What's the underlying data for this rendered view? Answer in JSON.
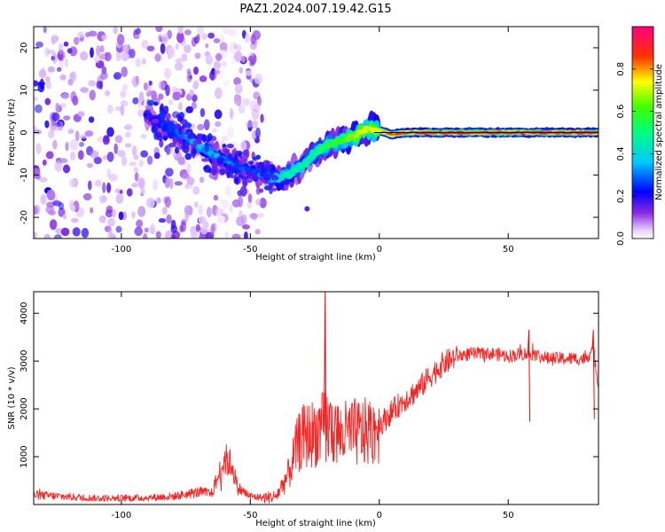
{
  "chart_data": [
    {
      "type": "heatmap",
      "title": "PAZ1.2024.007.19.42.G15",
      "xlabel": "Height of straight line (km)",
      "ylabel": "Frequency (Hz)",
      "xlim": [
        -134,
        85
      ],
      "ylim": [
        -25,
        25
      ],
      "x_ticks": [
        -100,
        -50,
        0,
        50
      ],
      "y_ticks": [
        -20,
        -10,
        0,
        10,
        20
      ],
      "colorbar": {
        "label": "Normalized spectral amplitude",
        "range": [
          0,
          1
        ],
        "ticks": [
          "0.0",
          "0.2",
          "0.4",
          "0.6",
          "0.8"
        ],
        "colormap": "hsv-like (white/violet to red/magenta)",
        "colors": [
          "#ffffff",
          "#8a2be2",
          "#0000ff",
          "#00ffff",
          "#00ff00",
          "#ffff00",
          "#ff0000",
          "#ff0080"
        ]
      },
      "ridge": {
        "x": [
          -90,
          -85,
          -80,
          -75,
          -70,
          -65,
          -60,
          -55,
          -50,
          -45,
          -40,
          -35,
          -30,
          -25,
          -20,
          -15,
          -10,
          -5,
          0,
          5,
          10,
          20,
          30,
          40,
          50,
          60,
          70,
          80,
          85
        ],
        "frequency": [
          4,
          2,
          0.5,
          -1,
          -3,
          -5,
          -6.5,
          -8,
          -9,
          -10,
          -11,
          -10,
          -8,
          -5,
          -3,
          -2,
          -1,
          1,
          0.5,
          -0.5,
          0,
          0,
          0,
          0,
          0,
          0,
          0,
          0,
          0
        ],
        "amplitude": [
          0.2,
          0.25,
          0.3,
          0.3,
          0.35,
          0.35,
          0.3,
          0.3,
          0.25,
          0.3,
          0.4,
          0.45,
          0.45,
          0.5,
          0.55,
          0.6,
          0.65,
          0.7,
          0.75,
          0.85,
          0.9,
          0.9,
          0.92,
          0.92,
          0.92,
          0.92,
          0.92,
          0.92,
          0.9
        ]
      },
      "noise_region_x": [
        -134,
        -45
      ],
      "isolated_blob": {
        "x": -28,
        "frequency": -18
      }
    },
    {
      "type": "line",
      "xlabel": "Height of straight line (km)",
      "ylabel": "SNR (10 * v/v)",
      "xlim": [
        -134,
        85
      ],
      "ylim": [
        0,
        4450
      ],
      "x_ticks": [
        -100,
        -50,
        0,
        50
      ],
      "y_ticks": [
        1000,
        2000,
        3000,
        4000
      ],
      "color": "#ff0000",
      "envelope": {
        "x": [
          -134,
          -110,
          -90,
          -80,
          -75,
          -70,
          -65,
          -62,
          -60,
          -57,
          -55,
          -50,
          -45,
          -40,
          -35,
          -32,
          -30,
          -25,
          -20,
          -15,
          -10,
          -5,
          0,
          5,
          10,
          15,
          20,
          25,
          30,
          35,
          40,
          45,
          50,
          55,
          60,
          65,
          70,
          75,
          80,
          83,
          85
        ],
        "y": [
          200,
          130,
          140,
          170,
          210,
          260,
          230,
          650,
          950,
          820,
          350,
          170,
          140,
          170,
          650,
          1200,
          1400,
          1500,
          1650,
          1450,
          1500,
          1500,
          1650,
          1950,
          2200,
          2400,
          2700,
          2950,
          3100,
          3150,
          3150,
          3150,
          3100,
          3150,
          3150,
          3050,
          3050,
          3050,
          3050,
          3250,
          2500
        ]
      },
      "spikes": [
        {
          "x": -21,
          "y": 4450
        },
        {
          "x": 58,
          "y": 3650
        },
        {
          "x": 83,
          "y": 3650
        }
      ]
    }
  ]
}
